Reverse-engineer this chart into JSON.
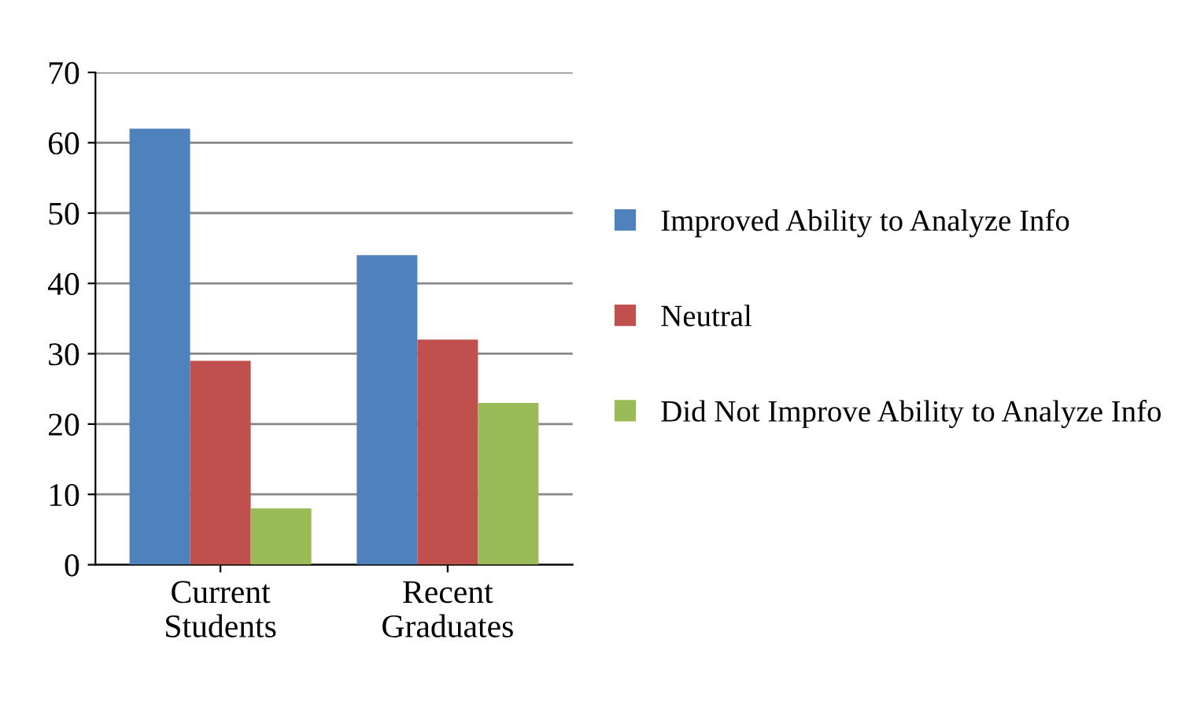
{
  "chart_data": {
    "type": "bar",
    "categories": [
      "Current\nStudents",
      "Recent\nGraduates"
    ],
    "series": [
      {
        "name": "Improved Ability to Analyze Info",
        "color": "#4f81bd",
        "values": [
          62,
          44
        ]
      },
      {
        "name": "Neutral",
        "color": "#c0504d",
        "values": [
          29,
          32
        ]
      },
      {
        "name": "Did Not Improve Ability to Analyze Info",
        "color": "#9bbb59",
        "values": [
          8,
          23
        ]
      }
    ],
    "ylim": [
      0,
      70
    ],
    "yticks": [
      0,
      10,
      20,
      30,
      40,
      50,
      60,
      70
    ],
    "grid": "y",
    "legend": "right"
  }
}
